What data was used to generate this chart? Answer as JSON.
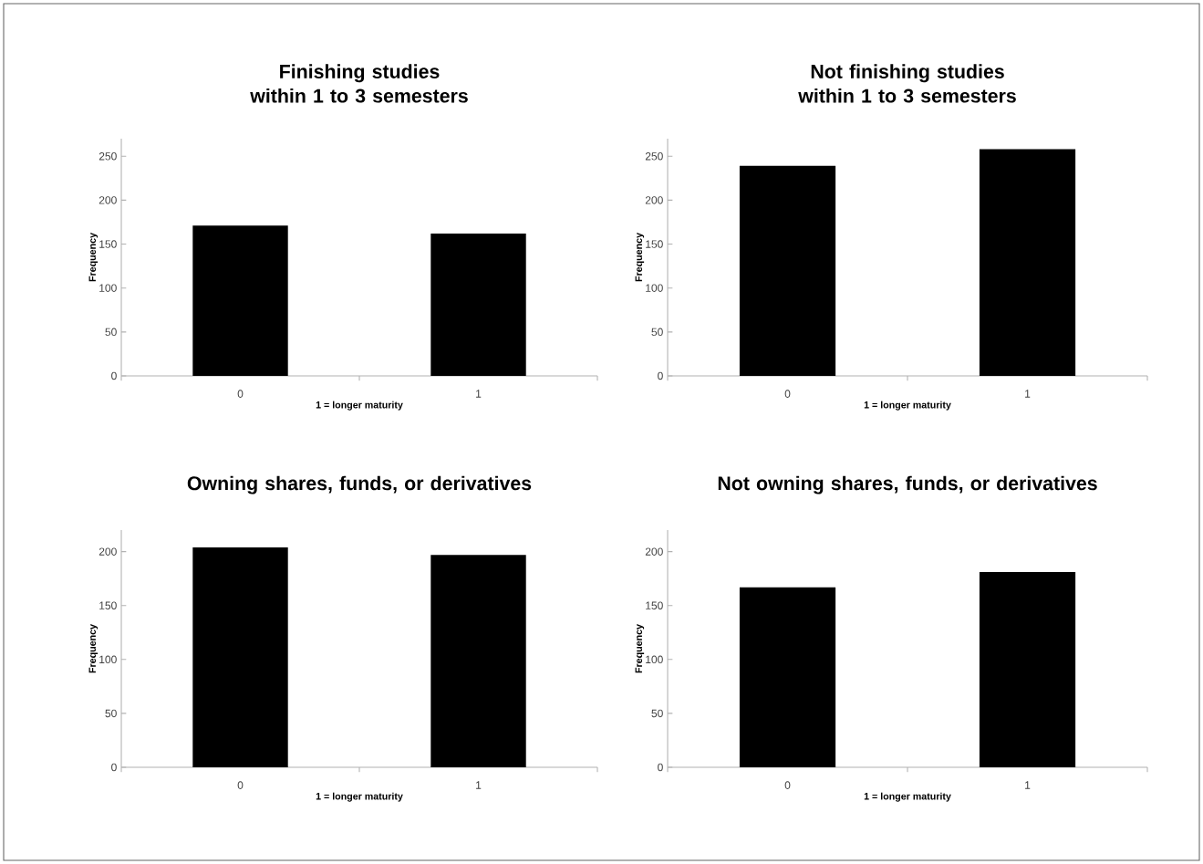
{
  "chart_data": [
    {
      "type": "bar",
      "title": "Finishing studies within 1 to 3 semesters",
      "xlabel": "1 = longer maturity",
      "ylabel": "Frequency",
      "categories": [
        "0",
        "1"
      ],
      "values": [
        171,
        162
      ],
      "color": "#000000",
      "ylim": [
        0,
        270
      ],
      "yticks": [
        0,
        50,
        100,
        150,
        200,
        250
      ]
    },
    {
      "type": "bar",
      "title": "Not finishing studies within 1 to 3 semesters",
      "xlabel": "1 = longer maturity",
      "ylabel": "Frequency",
      "categories": [
        "0",
        "1"
      ],
      "values": [
        239,
        258
      ],
      "color": "#000000",
      "ylim": [
        0,
        270
      ],
      "yticks": [
        0,
        50,
        100,
        150,
        200,
        250
      ]
    },
    {
      "type": "bar",
      "title": "Owning shares, funds, or derivatives",
      "xlabel": "1 = longer maturity",
      "ylabel": "Frequency",
      "categories": [
        "0",
        "1"
      ],
      "values": [
        204,
        197
      ],
      "color": "#000000",
      "ylim": [
        0,
        220
      ],
      "yticks": [
        0,
        50,
        100,
        150,
        200
      ]
    },
    {
      "type": "bar",
      "title": "Not owning shares, funds, or derivatives",
      "xlabel": "1 = longer maturity",
      "ylabel": "Frequency",
      "categories": [
        "0",
        "1"
      ],
      "values": [
        167,
        181
      ],
      "color": "#000000",
      "ylim": [
        0,
        220
      ],
      "yticks": [
        0,
        50,
        100,
        150,
        200
      ]
    }
  ]
}
